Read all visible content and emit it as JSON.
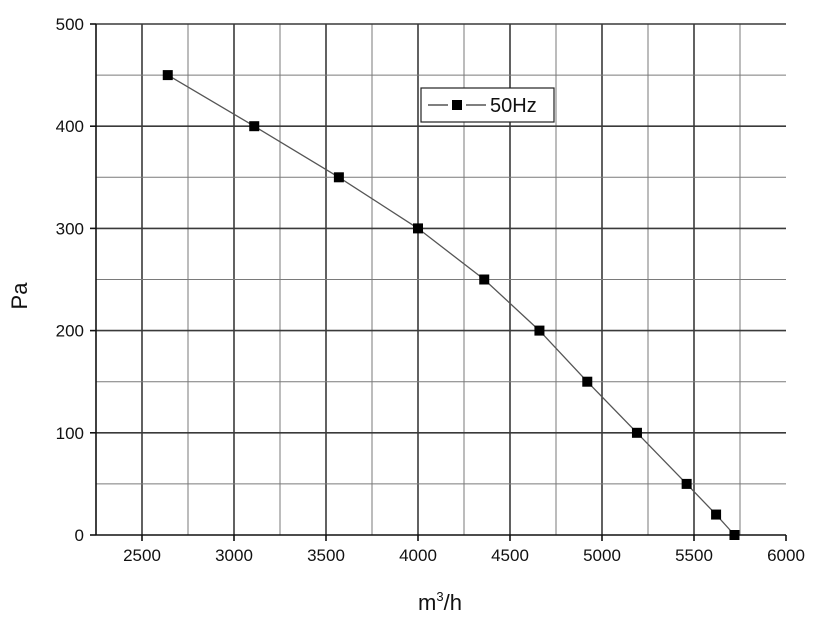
{
  "chart_data": {
    "type": "line",
    "xlabel": "m",
    "xlabel_sup": "3",
    "xlabel_suffix": "/h",
    "ylabel": "Pa",
    "xlim": [
      2250,
      6000
    ],
    "ylim": [
      0,
      500
    ],
    "x_ticks": [
      2500,
      3000,
      3500,
      4000,
      4500,
      5000,
      5500,
      6000
    ],
    "y_ticks": [
      0,
      100,
      200,
      300,
      400,
      500
    ],
    "grid": true,
    "legend_position": "top-center",
    "series": [
      {
        "name": "50Hz",
        "color": "#000000",
        "marker": "square",
        "x": [
          2640,
          3110,
          3570,
          4000,
          4360,
          4660,
          4920,
          5190,
          5460,
          5620,
          5720
        ],
        "y": [
          450,
          400,
          350,
          300,
          250,
          200,
          150,
          100,
          50,
          20,
          0
        ]
      }
    ]
  }
}
